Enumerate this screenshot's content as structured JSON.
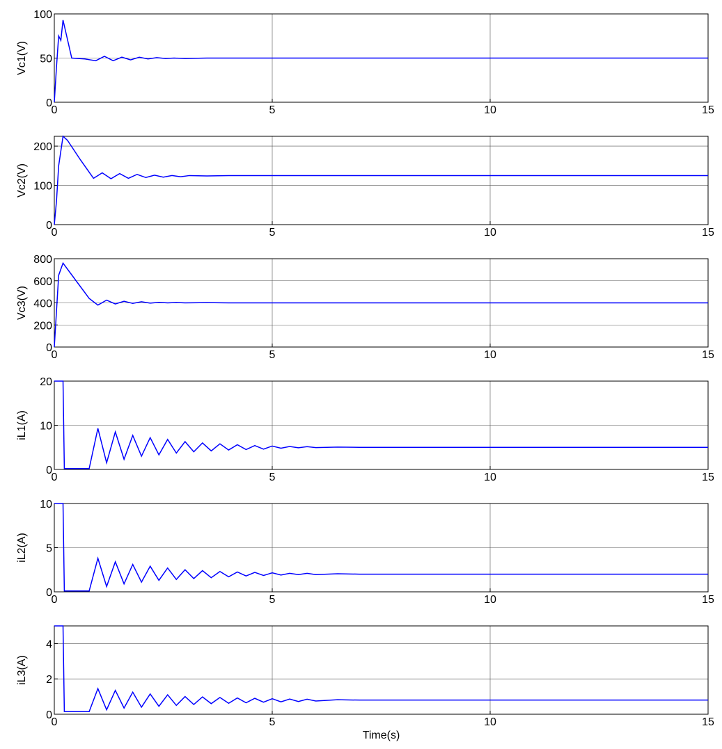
{
  "chart_data": [
    {
      "type": "line",
      "y_label": "Vc1(V)",
      "color": "#0000ff",
      "grid": true,
      "x": [
        0,
        0.05,
        0.1,
        0.15,
        0.2,
        0.4,
        0.7,
        0.95,
        1.15,
        1.35,
        1.55,
        1.75,
        1.95,
        2.15,
        2.35,
        2.55,
        2.75,
        3,
        3.5,
        4,
        5,
        15
      ],
      "values": [
        0,
        40,
        75,
        70,
        93,
        50,
        49,
        47,
        52,
        47,
        51,
        48,
        51,
        49,
        50.5,
        49.5,
        50,
        49.5,
        50,
        50,
        50,
        50
      ],
      "xlim": [
        0,
        15
      ],
      "xticks": [
        0,
        5,
        10,
        15
      ],
      "ylim": [
        0,
        100
      ],
      "yticks": [
        0,
        50,
        100
      ]
    },
    {
      "type": "line",
      "y_label": "Vc2(V)",
      "color": "#0000ff",
      "grid": true,
      "x": [
        0,
        0.05,
        0.1,
        0.2,
        0.3,
        0.6,
        0.9,
        1.1,
        1.3,
        1.5,
        1.7,
        1.9,
        2.1,
        2.3,
        2.5,
        2.7,
        2.9,
        3.1,
        3.5,
        4,
        5,
        15
      ],
      "values": [
        0,
        60,
        150,
        225,
        215,
        165,
        118,
        132,
        117,
        130,
        118,
        128,
        120,
        126,
        121,
        125,
        122,
        125,
        124,
        125,
        125,
        125
      ],
      "xlim": [
        0,
        15
      ],
      "xticks": [
        0,
        5,
        10,
        15
      ],
      "ylim": [
        0,
        225
      ],
      "yticks": [
        0,
        100,
        200
      ]
    },
    {
      "type": "line",
      "y_label": "Vc3(V)",
      "color": "#0000ff",
      "grid": true,
      "x": [
        0,
        0.1,
        0.2,
        0.5,
        0.8,
        1,
        1.2,
        1.4,
        1.6,
        1.8,
        2,
        2.2,
        2.4,
        2.6,
        2.8,
        3,
        3.5,
        4,
        5,
        15
      ],
      "values": [
        0,
        650,
        760,
        600,
        440,
        380,
        425,
        390,
        415,
        395,
        410,
        398,
        405,
        400,
        403,
        400,
        402,
        400,
        400,
        400
      ],
      "xlim": [
        0,
        15
      ],
      "xticks": [
        0,
        5,
        10,
        15
      ],
      "ylim": [
        0,
        800
      ],
      "yticks": [
        0,
        200,
        400,
        600,
        800
      ]
    },
    {
      "type": "line",
      "y_label": "iL1(A)",
      "color": "#0000ff",
      "grid": true,
      "x": [
        0,
        0.2,
        0.23,
        0.8,
        1,
        1.2,
        1.4,
        1.6,
        1.8,
        2,
        2.2,
        2.4,
        2.6,
        2.8,
        3,
        3.2,
        3.4,
        3.6,
        3.8,
        4,
        4.2,
        4.4,
        4.6,
        4.8,
        5,
        5.2,
        5.4,
        5.6,
        5.8,
        6,
        6.5,
        7,
        8,
        15
      ],
      "values": [
        20,
        20,
        0.2,
        0.2,
        9.3,
        1.5,
        8.5,
        2.3,
        7.7,
        3,
        7.2,
        3.3,
        6.8,
        3.7,
        6.3,
        4,
        6,
        4.2,
        5.8,
        4.4,
        5.6,
        4.5,
        5.4,
        4.6,
        5.3,
        4.8,
        5.2,
        4.9,
        5.15,
        4.95,
        5.05,
        5,
        5,
        5
      ],
      "xlim": [
        0,
        15
      ],
      "xticks": [
        0,
        5,
        10,
        15
      ],
      "ylim": [
        0,
        20
      ],
      "yticks": [
        0,
        10,
        20
      ]
    },
    {
      "type": "line",
      "y_label": "iL2(A)",
      "color": "#0000ff",
      "grid": true,
      "x": [
        0,
        0.2,
        0.23,
        0.8,
        1,
        1.2,
        1.4,
        1.6,
        1.8,
        2,
        2.2,
        2.4,
        2.6,
        2.8,
        3,
        3.2,
        3.4,
        3.6,
        3.8,
        4,
        4.2,
        4.4,
        4.6,
        4.8,
        5,
        5.2,
        5.4,
        5.6,
        5.8,
        6,
        6.5,
        7,
        8,
        15
      ],
      "values": [
        10,
        10,
        0.1,
        0.1,
        3.8,
        0.6,
        3.4,
        0.9,
        3.1,
        1.1,
        2.9,
        1.3,
        2.7,
        1.4,
        2.5,
        1.5,
        2.4,
        1.6,
        2.3,
        1.7,
        2.25,
        1.8,
        2.2,
        1.85,
        2.15,
        1.9,
        2.1,
        1.95,
        2.1,
        1.95,
        2.05,
        2,
        2,
        2
      ],
      "xlim": [
        0,
        15
      ],
      "xticks": [
        0,
        5,
        10,
        15
      ],
      "ylim": [
        0,
        10
      ],
      "yticks": [
        0,
        5,
        10
      ]
    },
    {
      "type": "line",
      "y_label": "iL3(A)",
      "x_label": "Time(s)",
      "color": "#0000ff",
      "grid": true,
      "x": [
        0,
        0.2,
        0.23,
        0.8,
        1,
        1.2,
        1.4,
        1.6,
        1.8,
        2,
        2.2,
        2.4,
        2.6,
        2.8,
        3,
        3.2,
        3.4,
        3.6,
        3.8,
        4,
        4.2,
        4.4,
        4.6,
        4.8,
        5,
        5.2,
        5.4,
        5.6,
        5.8,
        6,
        6.5,
        7,
        8,
        15
      ],
      "values": [
        5,
        5,
        0.15,
        0.15,
        1.45,
        0.25,
        1.35,
        0.35,
        1.25,
        0.4,
        1.15,
        0.45,
        1.1,
        0.5,
        1.0,
        0.55,
        0.98,
        0.6,
        0.95,
        0.62,
        0.92,
        0.65,
        0.9,
        0.68,
        0.88,
        0.7,
        0.86,
        0.72,
        0.85,
        0.75,
        0.82,
        0.8,
        0.8,
        0.8
      ],
      "xlim": [
        0,
        15
      ],
      "xticks": [
        0,
        5,
        10,
        15
      ],
      "ylim": [
        0,
        5
      ],
      "yticks": [
        0,
        2,
        4
      ]
    }
  ]
}
